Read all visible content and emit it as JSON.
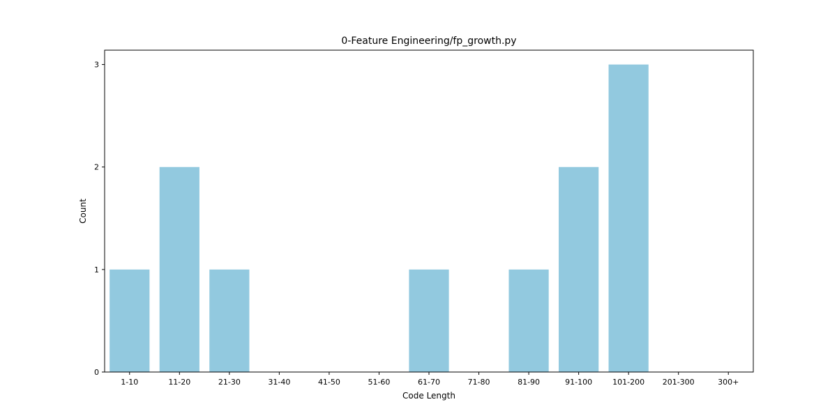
{
  "chart_data": {
    "type": "bar",
    "title": "0-Feature Engineering/fp_growth.py",
    "xlabel": "Code Length",
    "ylabel": "Count",
    "categories": [
      "1-10",
      "11-20",
      "21-30",
      "31-40",
      "41-50",
      "51-60",
      "61-70",
      "71-80",
      "81-90",
      "91-100",
      "101-200",
      "201-300",
      "300+"
    ],
    "values": [
      1,
      2,
      1,
      0,
      0,
      0,
      1,
      0,
      1,
      2,
      3,
      0,
      0
    ],
    "ylim": [
      0,
      3.14
    ],
    "yticks": [
      0,
      1,
      2,
      3
    ],
    "grid": false,
    "bar_color": "#92c9df"
  }
}
